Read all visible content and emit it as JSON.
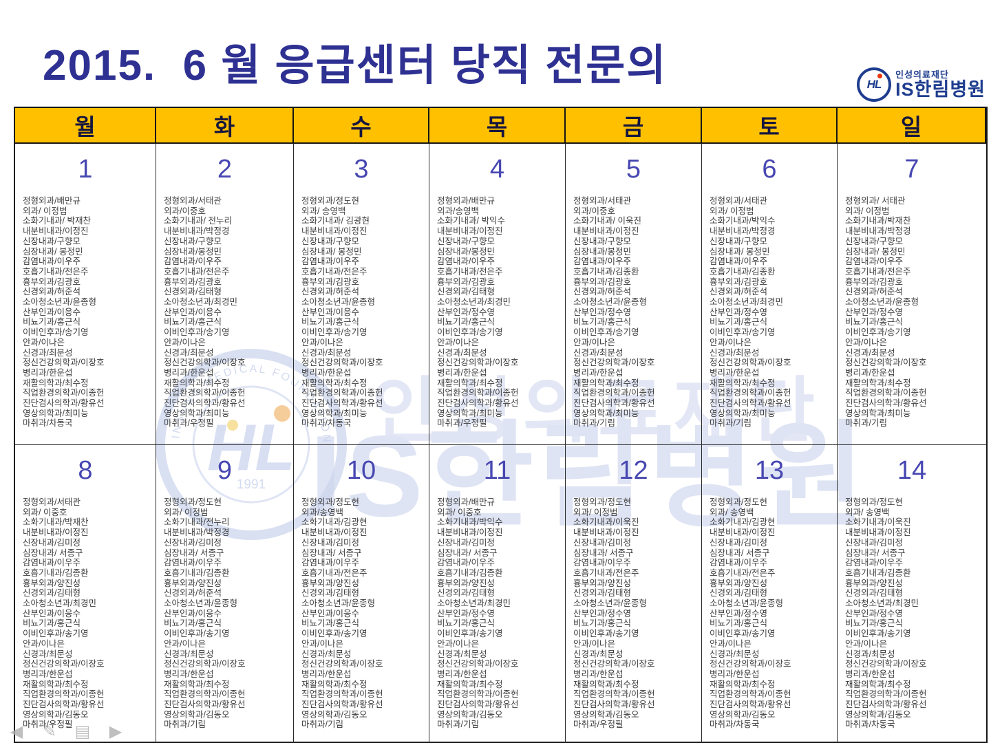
{
  "title": "2015.  6 월 응급센터 당직 전문의",
  "logo": {
    "foundation": "인성의료재단",
    "hospital": "IS한림병원",
    "monogram": "HL"
  },
  "watermark": {
    "foundation": "인성의료재단",
    "hospital": "IS한림병원",
    "ring_text": "INSUNG MEDICAL FOUNDATION",
    "monogram": "HL",
    "year": "1991"
  },
  "colors": {
    "header_bg": "#FFC000",
    "title_color": "#2E3192",
    "date_color": "#4747B2",
    "logo_blue": "#1F3D8F",
    "entry_text": "#3D3D3D"
  },
  "weekdays": [
    "월",
    "화",
    "수",
    "목",
    "금",
    "토",
    "일"
  ],
  "controls": [
    {
      "name": "prev-slide-button",
      "glyph": "◀"
    },
    {
      "name": "pen-tool-button",
      "glyph": "✎"
    },
    {
      "name": "slide-menu-button",
      "glyph": "▤"
    },
    {
      "name": "next-slide-button",
      "glyph": "▶"
    }
  ],
  "weeks": [
    {
      "days": [
        {
          "date": "1",
          "entries": [
            "정형외과/배만규",
            "외과/ 이정범",
            "소화기내과/ 박재찬",
            "내분비내과/이정진",
            "신장내과/구향모",
            "심장내과/ 봉정민",
            "감염내과/이우주",
            "호흡기내과/전은주",
            "흉부외과/김광호",
            "신경외과/허준석",
            "소아청소년과/윤종형",
            "산부인과/이응수",
            "비뇨기과/홍근식",
            "이비인후과/송기영",
            "안과/이나은",
            "신경과/최문성",
            "정신건강의학과/이장호",
            "병리과/한운섭",
            "재활의학과/최수정",
            "직업환경의학과/이종헌",
            "진단검사의학과/황유선",
            "영상의학과/최미능",
            "마취과/차동국"
          ]
        },
        {
          "date": "2",
          "entries": [
            "정형외과/서태관",
            "외과/이중호",
            "소화기내과/ 전누리",
            "내분비내과/박정경",
            "신장내과/구향모",
            "심장내과/봉정민",
            "감염내과/이우주",
            "호흡기내과/전은주",
            "흉부외과/김광호",
            "신경외과/김태형",
            "소아청소년과/최경민",
            "산부인과/이응수",
            "비뇨기과/홍근식",
            "이비인후과/송기영",
            "안과/이나은",
            "신경과/최문성",
            "정신건강의학과/이장호",
            "병리과/한운섭",
            "재활의학과/최수정",
            "직업환경의학과/이종헌",
            "진단검사의학과/황유선",
            "영상의학과/최미능",
            "마취과/우정필"
          ]
        },
        {
          "date": "3",
          "entries": [
            "정형외과/정도현",
            "외과/ 송영백",
            "소화기내과/ 김광현",
            "내분비내과/이정진",
            "신장내과/구향모",
            "심장내과/ 봉정민",
            "감염내과/이우주",
            "호흡기내과/전은주",
            "흉부외과/김광호",
            "신경외과/허준석",
            "소아청소년과/윤종형",
            "산부인과/이응수",
            "비뇨기과/홍근식",
            "이비인후과/송기영",
            "안과/이나은",
            "신경과/최문성",
            "정신건강의학과/이장호",
            "병리과/한운섭",
            "재활의학과/최수정",
            "직업환경의학과/이종헌",
            "진단검사의학과/황유선",
            "영상의학과/최미능",
            "마취과/차동국"
          ]
        },
        {
          "date": "4",
          "entries": [
            "정형외과/배만규",
            "외과/송영백",
            "소화기내과/ 박익수",
            "내분비내과/이정진",
            "신장내과/구향모",
            "심장내과/봉정민",
            "감염내과/이우주",
            "호흡기내과/전은주",
            "흉부외과/김광호",
            "신경외과/김태형",
            "소아청소년과/최경민",
            "산부인과/정수영",
            "비뇨기과/홍근식",
            "이비인후과/송기영",
            "안과/이나은",
            "신경과/최문성",
            "정신건강의학과/이장호",
            "병리과/한운섭",
            "재활의학과/최수정",
            "직업환경의학과/이종헌",
            "진단검사의학과/황유선",
            "영상의학과/최미능",
            "마취과/우정필"
          ]
        },
        {
          "date": "5",
          "entries": [
            "정형외과/서태관",
            "외과/이중호",
            "소화기내과/ 이욱진",
            "내분비내과/이정진",
            "신장내과/구향모",
            "심장내과/봉정민",
            "감염내과/이우주",
            "호흡기내과/김종환",
            "흉부외과/김광호",
            "신경외과/허준석",
            "소아청소년과/윤종형",
            "산부인과/정수영",
            "비뇨기과/홍근식",
            "이비인후과/송기영",
            "안과/이나은",
            "신경과/최문성",
            "정신건강의학과/이장호",
            "병리과/한운섭",
            "재활의학과/최수정",
            "직업환경의학과/이종헌",
            "진단검사의학과/황유선",
            "영상의학과/최미능",
            "마취과/기림"
          ]
        },
        {
          "date": "6",
          "entries": [
            "정형외과/서태관",
            "외과/ 이정범",
            "소화기내과/박익수",
            "내분비내과/박정경",
            "신장내과/구향모",
            "심장내과/ 봉정민",
            "감염내과/이우주",
            "호흡기내과/김종환",
            "흉부외과/김광호",
            "신경외과/허준석",
            "소아청소년과/최경민",
            "산부인과/정수영",
            "비뇨기과/홍근식",
            "이비인후과/송기영",
            "안과/이나은",
            "신경과/최문성",
            "정신건강의학과/이장호",
            "병리과/한운섭",
            "재활의학과/최수정",
            "직업환경의학과/이종헌",
            "진단검사의학과/황유선",
            "영상의학과/최미능",
            "마취과/기림"
          ]
        },
        {
          "date": "7",
          "entries": [
            "정형외과/ 서태관",
            "외과/ 이정범",
            "소화기내과/박재찬",
            "내분비내과/박정경",
            "신장내과/구향모",
            "심장내과/ 봉정민",
            "감염내과/이우주",
            "호흡기내과/전은주",
            "흉부외과/김광호",
            "신경외과/허준석",
            "소아청소년과/윤종형",
            "산부인과/정수영",
            "비뇨기과/홍근식",
            "이비인후과/송기영",
            "안과/이나은",
            "신경과/최문성",
            "정신건강의학과/이장호",
            "병리과/한운섭",
            "재활의학과/최수정",
            "직업환경의학과/이종헌",
            "진단검사의학과/황유선",
            "영상의학과/최미능",
            "마취과/기림"
          ]
        }
      ]
    },
    {
      "days": [
        {
          "date": "8",
          "entries": [
            "정형외과/서태관",
            "외과/ 이중호",
            "소화기내과/박재찬",
            "내분비내과/이정진",
            "신장내과/김미정",
            "심장내과/ 서종구",
            "감염내과/이우주",
            "호흡기내과/김종환",
            "흉부외과/양진성",
            "신경외과/김태형",
            "소아청소년과/최경민",
            "산부인과/이응수",
            "비뇨기과/홍근식",
            "이비인후과/송기영",
            "안과/이나은",
            "신경과/최문성",
            "정신건강의학과/이장호",
            "병리과/한운섭",
            "재활의학과/최수정",
            "직업환경의학과/이종헌",
            "진단검사의학과/황유선",
            "영상의학과/김동오",
            "마취과/우정필"
          ]
        },
        {
          "date": "9",
          "entries": [
            "정형외과/정도현",
            "외과/ 이정범",
            "소화기내과/전누리",
            "내분비내과/박정경",
            "신장내과/김미정",
            "심장내과/ 서종구",
            "감염내과/이우주",
            "호흡기내과/김종환",
            "흉부외과/양진성",
            "신경외과/허준석",
            "소아청소년과/윤종형",
            "산부인과/이응수",
            "비뇨기과/홍근식",
            "이비인후과/송기영",
            "안과/이나은",
            "신경과/최문성",
            "정신건강의학과/이장호",
            "병리과/한운섭",
            "재활의학과/최수정",
            "직업환경의학과/이종헌",
            "진단검사의학과/황유선",
            "영상의학과/김동오",
            "마취과/기림"
          ]
        },
        {
          "date": "10",
          "entries": [
            "정형외과/정도현",
            "외과/송영백",
            "소화기내과/김광현",
            "내분비내과/이정진",
            "신장내과/김미정",
            "심장내과/ 서종구",
            "감염내과/이우주",
            "호흡기내과/전은주",
            "흉부외과/양진성",
            "신경외과/김태형",
            "소아청소년과/윤종형",
            "산부인과/이응수",
            "비뇨기과/홍근식",
            "이비인후과/송기영",
            "안과/이나은",
            "신경과/최문성",
            "정신건강의학과/이장호",
            "병리과/한운섭",
            "재활의학과/최수정",
            "직업환경의학과/이종헌",
            "진단검사의학과/황유선",
            "영상의학과/김동오",
            "마취과/기림"
          ]
        },
        {
          "date": "11",
          "entries": [
            "정형외과/배만규",
            "외과/ 이중호",
            "소화기내과/박익수",
            "내분비내과/이정진",
            "신장내과/김미정",
            "심장내과/ 서종구",
            "감염내과/이우주",
            "호흡기내과/김종환",
            "흉부외과/양진성",
            "신경외과/김태형",
            "소아청소년과/최경민",
            "산부인과/정수영",
            "비뇨기과/홍근식",
            "이비인후과/송기영",
            "안과/이나은",
            "신경과/최문성",
            "정신건강의학과/이장호",
            "병리과/한운섭",
            "재활의학과/최수정",
            "직업환경의학과/이종헌",
            "진단검사의학과/황유선",
            "영상의학과/김동오",
            "마취과/기림"
          ]
        },
        {
          "date": "12",
          "entries": [
            "정형외과/정도현",
            "외과/ 이정범",
            "소화기내과/이욱진",
            "내분비내과/이정진",
            "신장내과/김미정",
            "심장내과/ 서종구",
            "감염내과/이우주",
            "호흡기내과/전은주",
            "흉부외과/양진성",
            "신경외과/김태형",
            "소아청소년과/윤종형",
            "산부인과/정수영",
            "비뇨기과/홍근식",
            "이비인후과/송기영",
            "안과/이나은",
            "신경과/최문성",
            "정신건강의학과/이장호",
            "병리과/한운섭",
            "재활의학과/최수정",
            "직업환경의학과/이종헌",
            "진단검사의학과/황유선",
            "영상의학과/김동오",
            "마취과/우정필"
          ]
        },
        {
          "date": "13",
          "entries": [
            "정형외과/정도현",
            "외과/ 송영백",
            "소화기내과/김광현",
            "내분비내과/이정진",
            "신장내과/김미정",
            "심장내과/ 서종구",
            "감염내과/이우주",
            "호흡기내과/전은주",
            "흉부외과/양진성",
            "신경외과/김태형",
            "소아청소년과/윤종형",
            "산부인과/정수영",
            "비뇨기과/홍근식",
            "이비인후과/송기영",
            "안과/이나은",
            "신경과/최문성",
            "정신건강의학과/이장호",
            "병리과/한운섭",
            "재활의학과/최수정",
            "직업환경의학과/이종헌",
            "진단검사의학과/황유선",
            "영상의학과/김동오",
            "마취과/차동국"
          ]
        },
        {
          "date": "14",
          "entries": [
            "정형외과/정도현",
            "외과/ 송영백",
            "소화기내과/이욱진",
            "내분비내과/이정진",
            "신장내과/김미정",
            "심장내과/ 서종구",
            "감염내과/이우주",
            "호흡기내과/김종환",
            "흉부외과/양진성",
            "신경외과/김태형",
            "소아청소년과/최경민",
            "산부인과/정수영",
            "비뇨기과/홍근식",
            "이비인후과/송기영",
            "안과/이나은",
            "신경과/최문성",
            "정신건강의학과/이장호",
            "병리과/한운섭",
            "재활의학과/최수정",
            "직업환경의학과/이종헌",
            "진단검사의학과/황유선",
            "영상의학과/김동오",
            "마취과/차동국"
          ]
        }
      ]
    }
  ]
}
